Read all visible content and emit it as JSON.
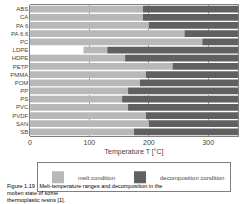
{
  "chart_data": {
    "type": "bar",
    "orientation": "horizontal",
    "categories": [
      "ABS",
      "CA",
      "PA 6",
      "PA 6.6",
      "PC",
      "LDPE",
      "HDPE",
      "PETP",
      "PMMA",
      "POM",
      "PP",
      "PS",
      "PVC",
      "PVDF",
      "SAN",
      "SB"
    ],
    "series": [
      {
        "name": "melt condition",
        "color": "#b8b8b8",
        "start": [
          0,
          0,
          0,
          0,
          0,
          90,
          0,
          0,
          0,
          0,
          0,
          0,
          0,
          0,
          0,
          0
        ],
        "end": [
          190,
          190,
          200,
          260,
          290,
          130,
          160,
          240,
          195,
          185,
          165,
          155,
          165,
          195,
          200,
          175
        ]
      },
      {
        "name": "decomposition condition",
        "color": "#606060",
        "start": [
          190,
          190,
          200,
          260,
          290,
          130,
          160,
          240,
          195,
          185,
          165,
          155,
          165,
          195,
          200,
          175
        ],
        "end": [
          350,
          350,
          350,
          350,
          350,
          350,
          350,
          350,
          350,
          350,
          350,
          350,
          350,
          350,
          350,
          350
        ]
      }
    ],
    "xlabel": "Temperature T [°C]",
    "xlim": [
      0,
      350
    ],
    "xticks": [
      0,
      100,
      200,
      300
    ],
    "grid": true,
    "legend": "bottom",
    "caption": "Figure 1.19   Melt-temperature ranges and decomposition in the molten state of some\nthermoplastic resins [1]."
  }
}
